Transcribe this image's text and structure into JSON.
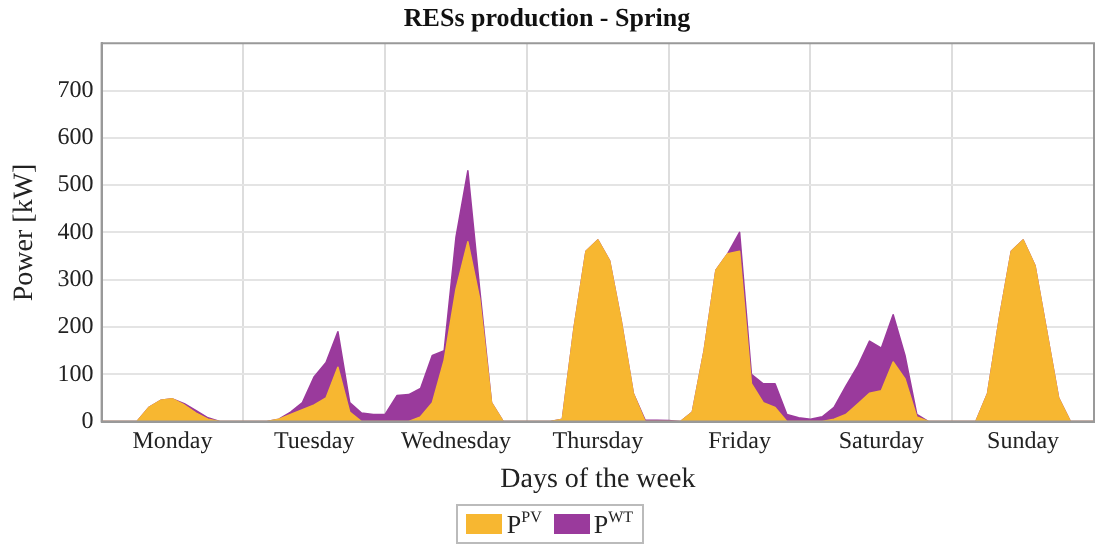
{
  "chart_data": {
    "type": "area",
    "title": "RESs production - Spring",
    "xlabel": "Days of the week",
    "ylabel": "Power [kW]",
    "stacked": true,
    "grid": true,
    "legend": "bottom",
    "categories": [
      null,
      null,
      null,
      null,
      null,
      null,
      "Monday",
      null,
      null,
      null,
      null,
      null,
      null,
      null,
      null,
      null,
      null,
      null,
      "Tuesday",
      null,
      null,
      null,
      null,
      null,
      null,
      null,
      null,
      null,
      null,
      null,
      "Wednesday",
      null,
      null,
      null,
      null,
      null,
      null,
      null,
      null,
      null,
      null,
      null,
      "Thursday",
      null,
      null,
      null,
      null,
      null,
      null,
      null,
      null,
      null,
      null,
      null,
      "Friday",
      null,
      null,
      null,
      null,
      null,
      null,
      null,
      null,
      null,
      null,
      null,
      "Saturday",
      null,
      null,
      null,
      null,
      null,
      null,
      null,
      null,
      null,
      null,
      null,
      "Sunday",
      null,
      null,
      null,
      null,
      null,
      null
    ],
    "ylim": [
      0,
      800
    ],
    "yticks": [
      0,
      100,
      200,
      300,
      400,
      500,
      600,
      700
    ],
    "series": [
      {
        "name": "P$^{PV}$",
        "color": "#f7b731",
        "values": [
          0,
          0,
          0,
          0,
          30,
          45,
          48,
          35,
          18,
          5,
          0,
          0,
          0,
          0,
          0,
          5,
          15,
          25,
          35,
          50,
          115,
          20,
          0,
          0,
          0,
          0,
          0,
          10,
          40,
          130,
          280,
          380,
          260,
          40,
          0,
          0,
          0,
          0,
          0,
          5,
          200,
          360,
          384,
          340,
          210,
          60,
          0,
          0,
          0,
          0,
          20,
          150,
          320,
          355,
          360,
          80,
          40,
          30,
          0,
          0,
          0,
          0,
          5,
          15,
          37,
          60,
          65,
          126,
          90,
          10,
          0,
          0,
          0,
          0,
          0,
          60,
          220,
          360,
          384,
          330,
          190,
          50,
          0,
          0,
          0
        ]
      },
      {
        "name": "P$^{WT}$",
        "color": "#9a3a9c",
        "values": [
          0,
          0,
          0,
          0,
          0,
          0,
          0,
          3,
          5,
          3,
          0,
          0,
          0,
          0,
          0,
          0,
          5,
          15,
          60,
          75,
          75,
          20,
          18,
          15,
          15,
          55,
          57,
          60,
          100,
          20,
          110,
          150,
          20,
          0,
          0,
          0,
          0,
          0,
          0,
          0,
          0,
          0,
          0,
          0,
          0,
          0,
          3,
          3,
          2,
          0,
          0,
          0,
          0,
          0,
          40,
          20,
          40,
          50,
          15,
          8,
          5,
          10,
          25,
          60,
          80,
          110,
          90,
          100,
          50,
          5,
          0,
          0,
          0,
          0,
          0,
          0,
          0,
          0,
          0,
          0,
          0,
          0,
          0,
          0,
          0
        ]
      }
    ]
  }
}
